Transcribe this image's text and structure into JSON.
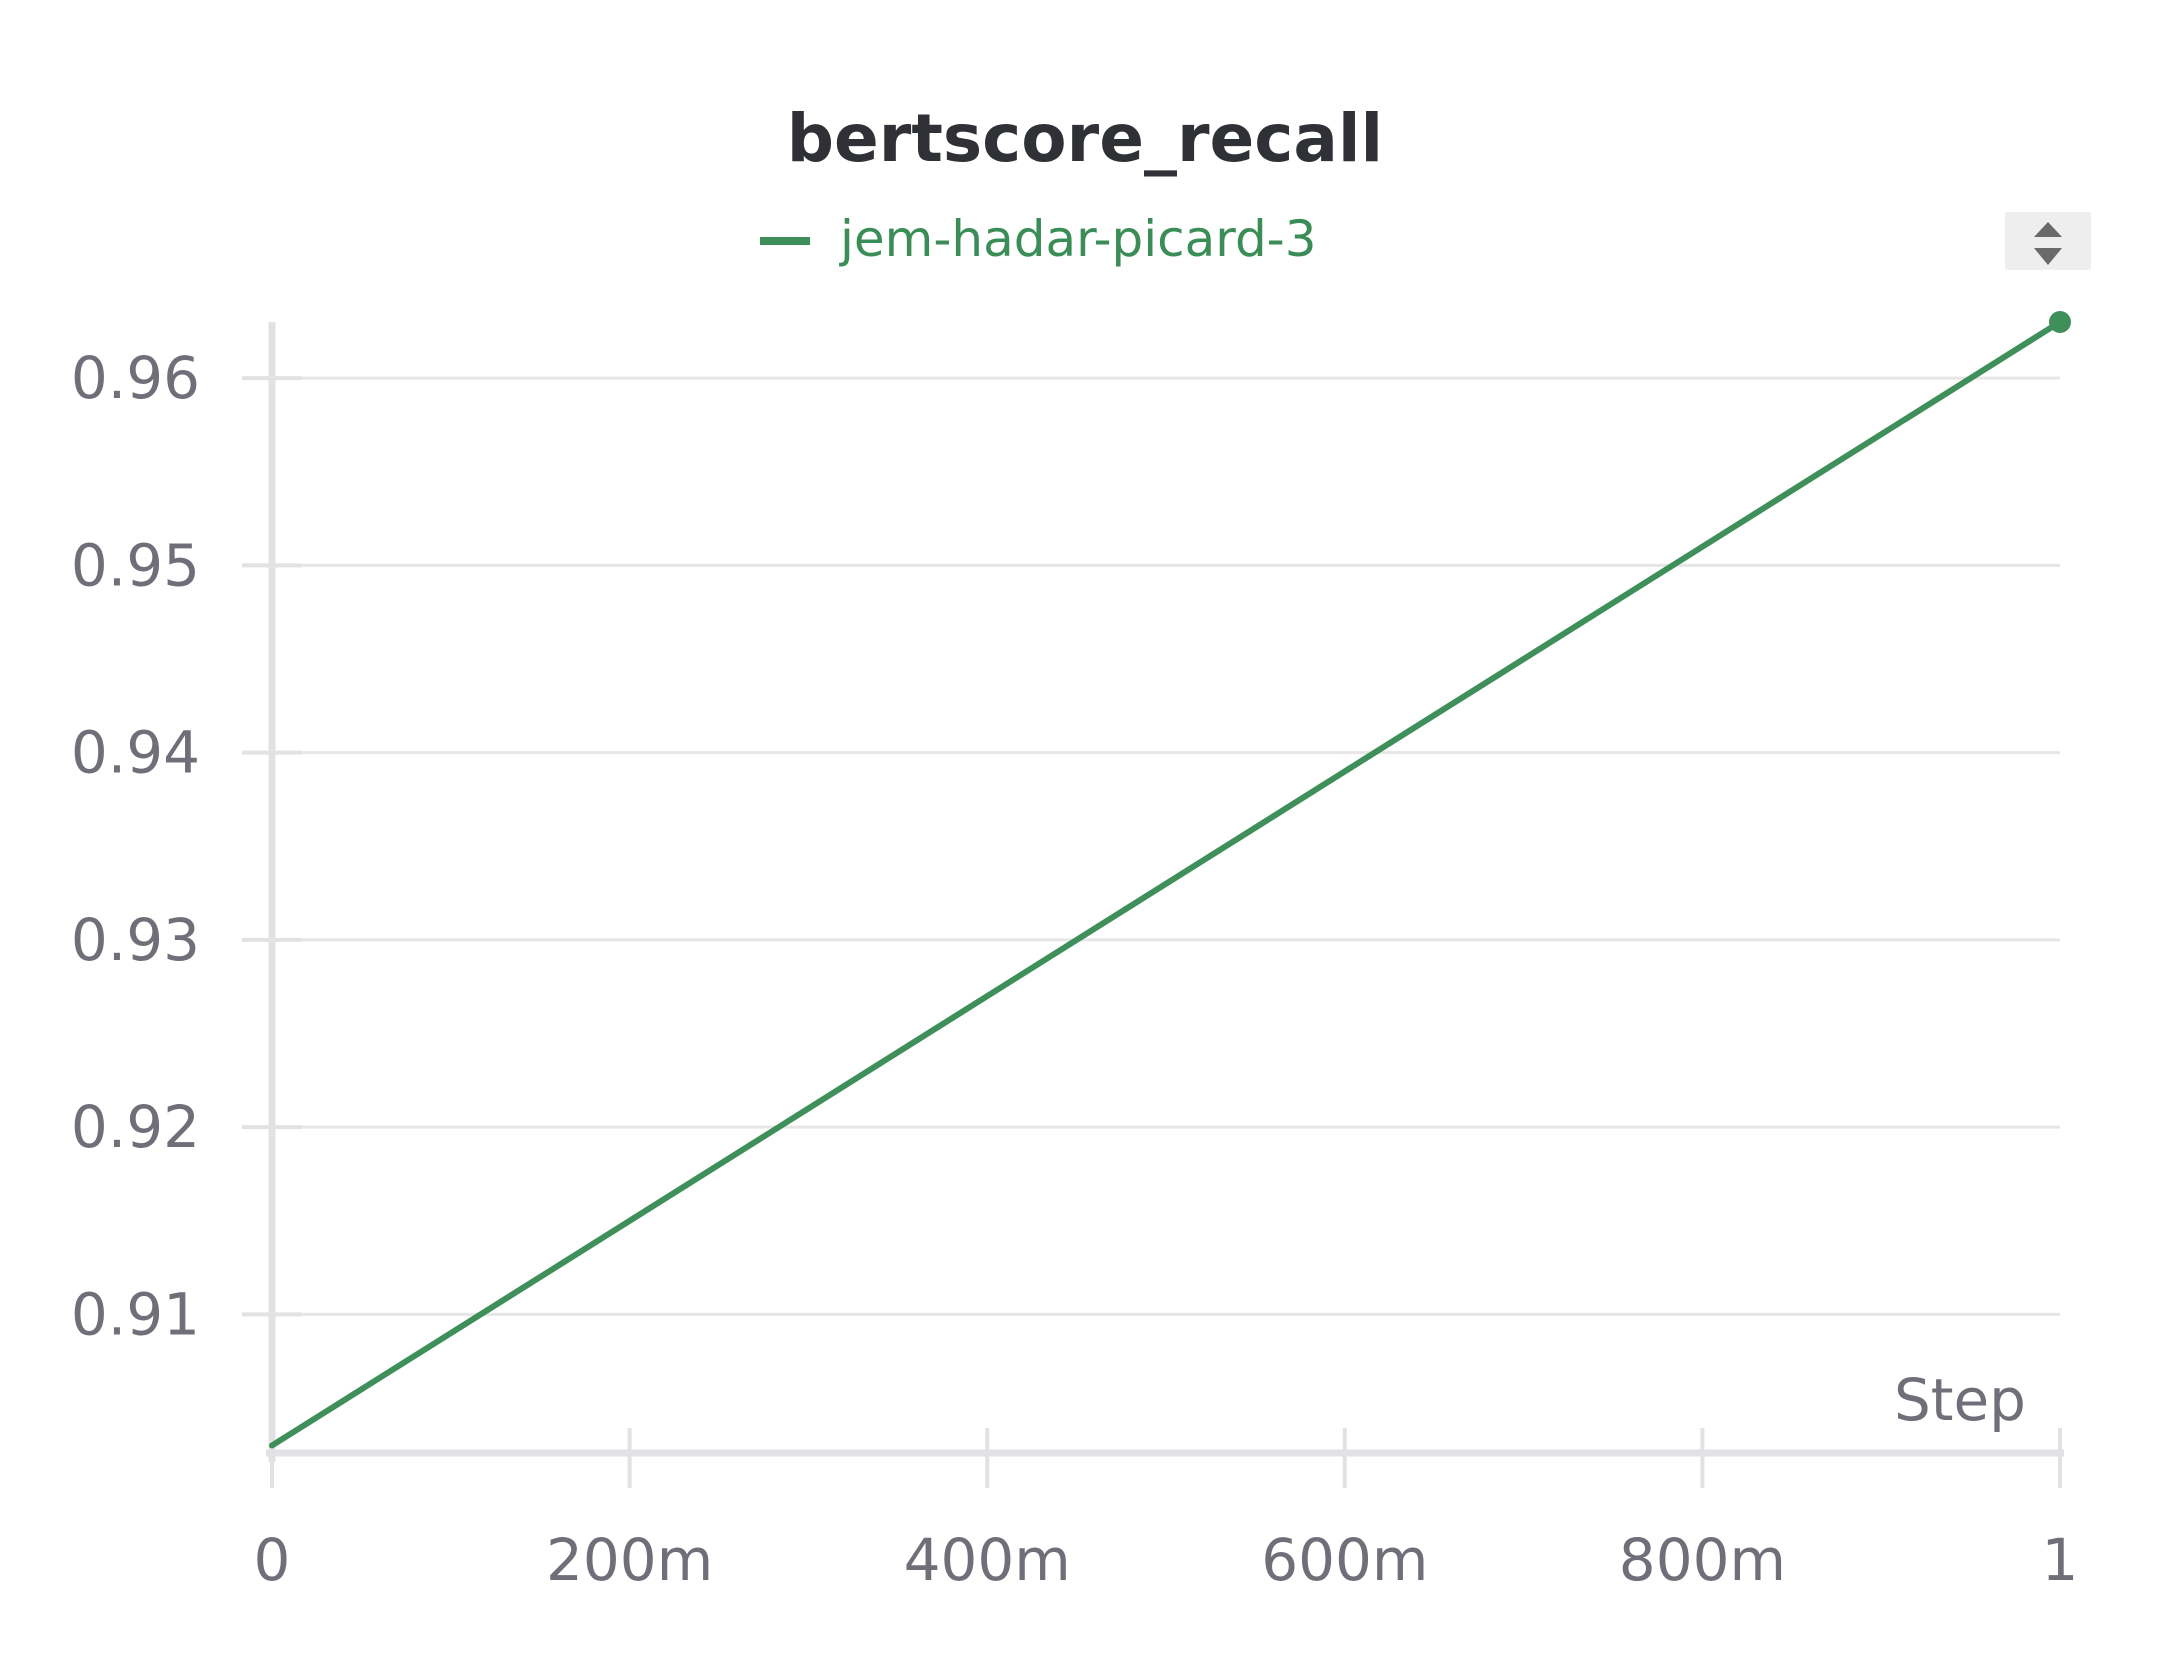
{
  "chart_data": {
    "type": "line",
    "title": "bertscore_recall",
    "xlabel": "Step",
    "ylabel": "",
    "xlim": [
      0,
      1
    ],
    "ylim": [
      0.9026,
      0.963
    ],
    "x_ticks": [
      {
        "value": 0,
        "label": "0"
      },
      {
        "value": 0.2,
        "label": "200m"
      },
      {
        "value": 0.4,
        "label": "400m"
      },
      {
        "value": 0.6,
        "label": "600m"
      },
      {
        "value": 0.8,
        "label": "800m"
      },
      {
        "value": 1,
        "label": "1"
      }
    ],
    "y_ticks": [
      {
        "value": 0.91,
        "label": "0.91"
      },
      {
        "value": 0.92,
        "label": "0.92"
      },
      {
        "value": 0.93,
        "label": "0.93"
      },
      {
        "value": 0.94,
        "label": "0.94"
      },
      {
        "value": 0.95,
        "label": "0.95"
      },
      {
        "value": 0.96,
        "label": "0.96"
      }
    ],
    "grid": true,
    "legend": "top-center",
    "series": [
      {
        "name": "jem-hadar-picard-3",
        "color": "#3f8f5b",
        "x": [
          0,
          1
        ],
        "y": [
          0.903,
          0.963
        ]
      }
    ]
  },
  "controls": {
    "legend_scroll_icon": "up-down-arrows-icon"
  }
}
